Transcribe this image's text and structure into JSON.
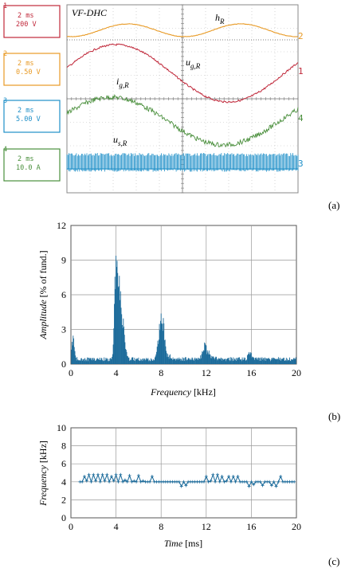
{
  "panels": {
    "a_label": "(a)",
    "b_label": "(b)",
    "c_label": "(c)"
  },
  "scope": {
    "header_label": "VF-DHC",
    "channels": [
      {
        "number": "1",
        "time": "2 ms",
        "scale": "200 V",
        "color": "#c0283a"
      },
      {
        "number": "2",
        "time": "2 ms",
        "scale": "0.50 V",
        "color": "#e89a25"
      },
      {
        "number": "3",
        "time": "2 ms",
        "scale": "5.00 V",
        "color": "#1e8fc8"
      },
      {
        "number": "4",
        "time": "2 ms",
        "scale": "10.0 A",
        "color": "#4a8f3c"
      }
    ],
    "trace_labels": {
      "h": {
        "main": "h",
        "sub": "R"
      },
      "ug": {
        "main": "u",
        "sub": "g,R"
      },
      "ig": {
        "main": "i",
        "sub": "g,R"
      },
      "us": {
        "main": "u",
        "sub": "s,R"
      }
    },
    "right_markers": [
      "2",
      "1",
      "4",
      "3"
    ]
  },
  "chart_data": [
    {
      "type": "bar",
      "xlabel": "Frequency [kHz]",
      "ylabel": "Amplitude [% of fund.]",
      "xlabel_main": "Frequency",
      "xlabel_unit": " [kHz]",
      "ylabel_main": "Amplitude",
      "ylabel_unit": " [% of fund.]",
      "xlim": [
        0,
        20
      ],
      "ylim": [
        0,
        12
      ],
      "xticks": [
        "0",
        "4",
        "8",
        "12",
        "16",
        "20"
      ],
      "yticks": [
        "0",
        "3",
        "6",
        "9",
        "12"
      ],
      "grid": true,
      "color": "#1a6a9a",
      "peaks": [
        {
          "x": 0.2,
          "y": 2.0
        },
        {
          "x": 4.0,
          "y": 9.6
        },
        {
          "x": 4.3,
          "y": 7.0
        },
        {
          "x": 4.6,
          "y": 3.5
        },
        {
          "x": 7.9,
          "y": 2.7
        },
        {
          "x": 8.2,
          "y": 1.7
        },
        {
          "x": 11.9,
          "y": 1.1
        },
        {
          "x": 15.9,
          "y": 0.6
        }
      ]
    },
    {
      "type": "line",
      "xlabel": "Time [ms]",
      "ylabel": "Frequency [kHz]",
      "xlabel_main": "Time",
      "xlabel_unit": " [ms]",
      "ylabel_main": "Frequency",
      "ylabel_unit": " [kHz]",
      "xlim": [
        0,
        20
      ],
      "ylim": [
        0,
        10
      ],
      "xticks": [
        "0",
        "4",
        "8",
        "12",
        "16",
        "20"
      ],
      "yticks": [
        "0",
        "2",
        "4",
        "6",
        "8",
        "10"
      ],
      "grid": true,
      "color": "#1a6a9a",
      "series": [
        {
          "x": [
            0.8,
            1.0,
            1.2,
            1.4,
            1.6,
            1.8,
            2.0,
            2.2,
            2.4,
            2.6,
            2.8,
            3.0,
            3.2,
            3.4,
            3.6,
            3.8,
            4.0,
            4.2,
            4.4,
            4.6,
            4.8,
            5.0,
            5.2,
            5.4,
            5.6,
            5.8,
            6.0,
            6.2,
            6.4,
            6.6,
            6.8,
            7.0,
            7.2,
            7.4,
            7.6,
            7.8,
            8.0,
            8.2,
            8.4,
            8.6,
            8.8,
            9.0,
            9.2,
            9.4,
            9.6,
            9.8,
            10.0,
            10.2,
            10.4,
            10.6,
            10.8,
            11.0,
            11.2,
            11.4,
            11.6,
            11.8,
            12.0,
            12.2,
            12.4,
            12.6,
            12.8,
            13.0,
            13.2,
            13.4,
            13.6,
            13.8,
            14.0,
            14.2,
            14.4,
            14.6,
            14.8,
            15.0,
            15.2,
            15.4,
            15.6,
            15.8,
            16.0,
            16.2,
            16.4,
            16.6,
            16.8,
            17.0,
            17.2,
            17.4,
            17.6,
            17.8,
            18.0,
            18.2,
            18.4,
            18.6,
            18.8,
            19.0,
            19.2,
            19.4,
            19.6,
            19.8
          ],
          "y": [
            4.0,
            4.0,
            4.6,
            4.1,
            4.8,
            4.0,
            4.8,
            4.1,
            4.8,
            4.0,
            4.8,
            4.1,
            4.8,
            4.0,
            4.6,
            4.1,
            4.8,
            4.0,
            4.8,
            4.0,
            4.2,
            4.0,
            4.7,
            4.0,
            4.1,
            4.0,
            4.7,
            4.0,
            4.1,
            4.0,
            4.0,
            4.0,
            4.6,
            4.0,
            4.0,
            4.0,
            4.0,
            4.0,
            4.0,
            4.0,
            4.0,
            4.0,
            4.0,
            4.0,
            4.0,
            3.5,
            4.0,
            3.6,
            4.0,
            4.0,
            4.0,
            4.0,
            4.0,
            4.0,
            4.0,
            4.0,
            4.6,
            4.0,
            4.1,
            4.8,
            4.0,
            4.8,
            4.0,
            4.6,
            4.0,
            4.1,
            4.6,
            4.0,
            4.6,
            4.0,
            4.6,
            4.0,
            4.0,
            4.0,
            4.0,
            3.5,
            4.0,
            3.7,
            4.0,
            4.0,
            4.0,
            3.6,
            4.0,
            4.0,
            4.0,
            3.6,
            4.0,
            3.5,
            4.0,
            4.6,
            4.0,
            4.0,
            4.0,
            4.0,
            4.0,
            4.0
          ]
        }
      ]
    }
  ]
}
